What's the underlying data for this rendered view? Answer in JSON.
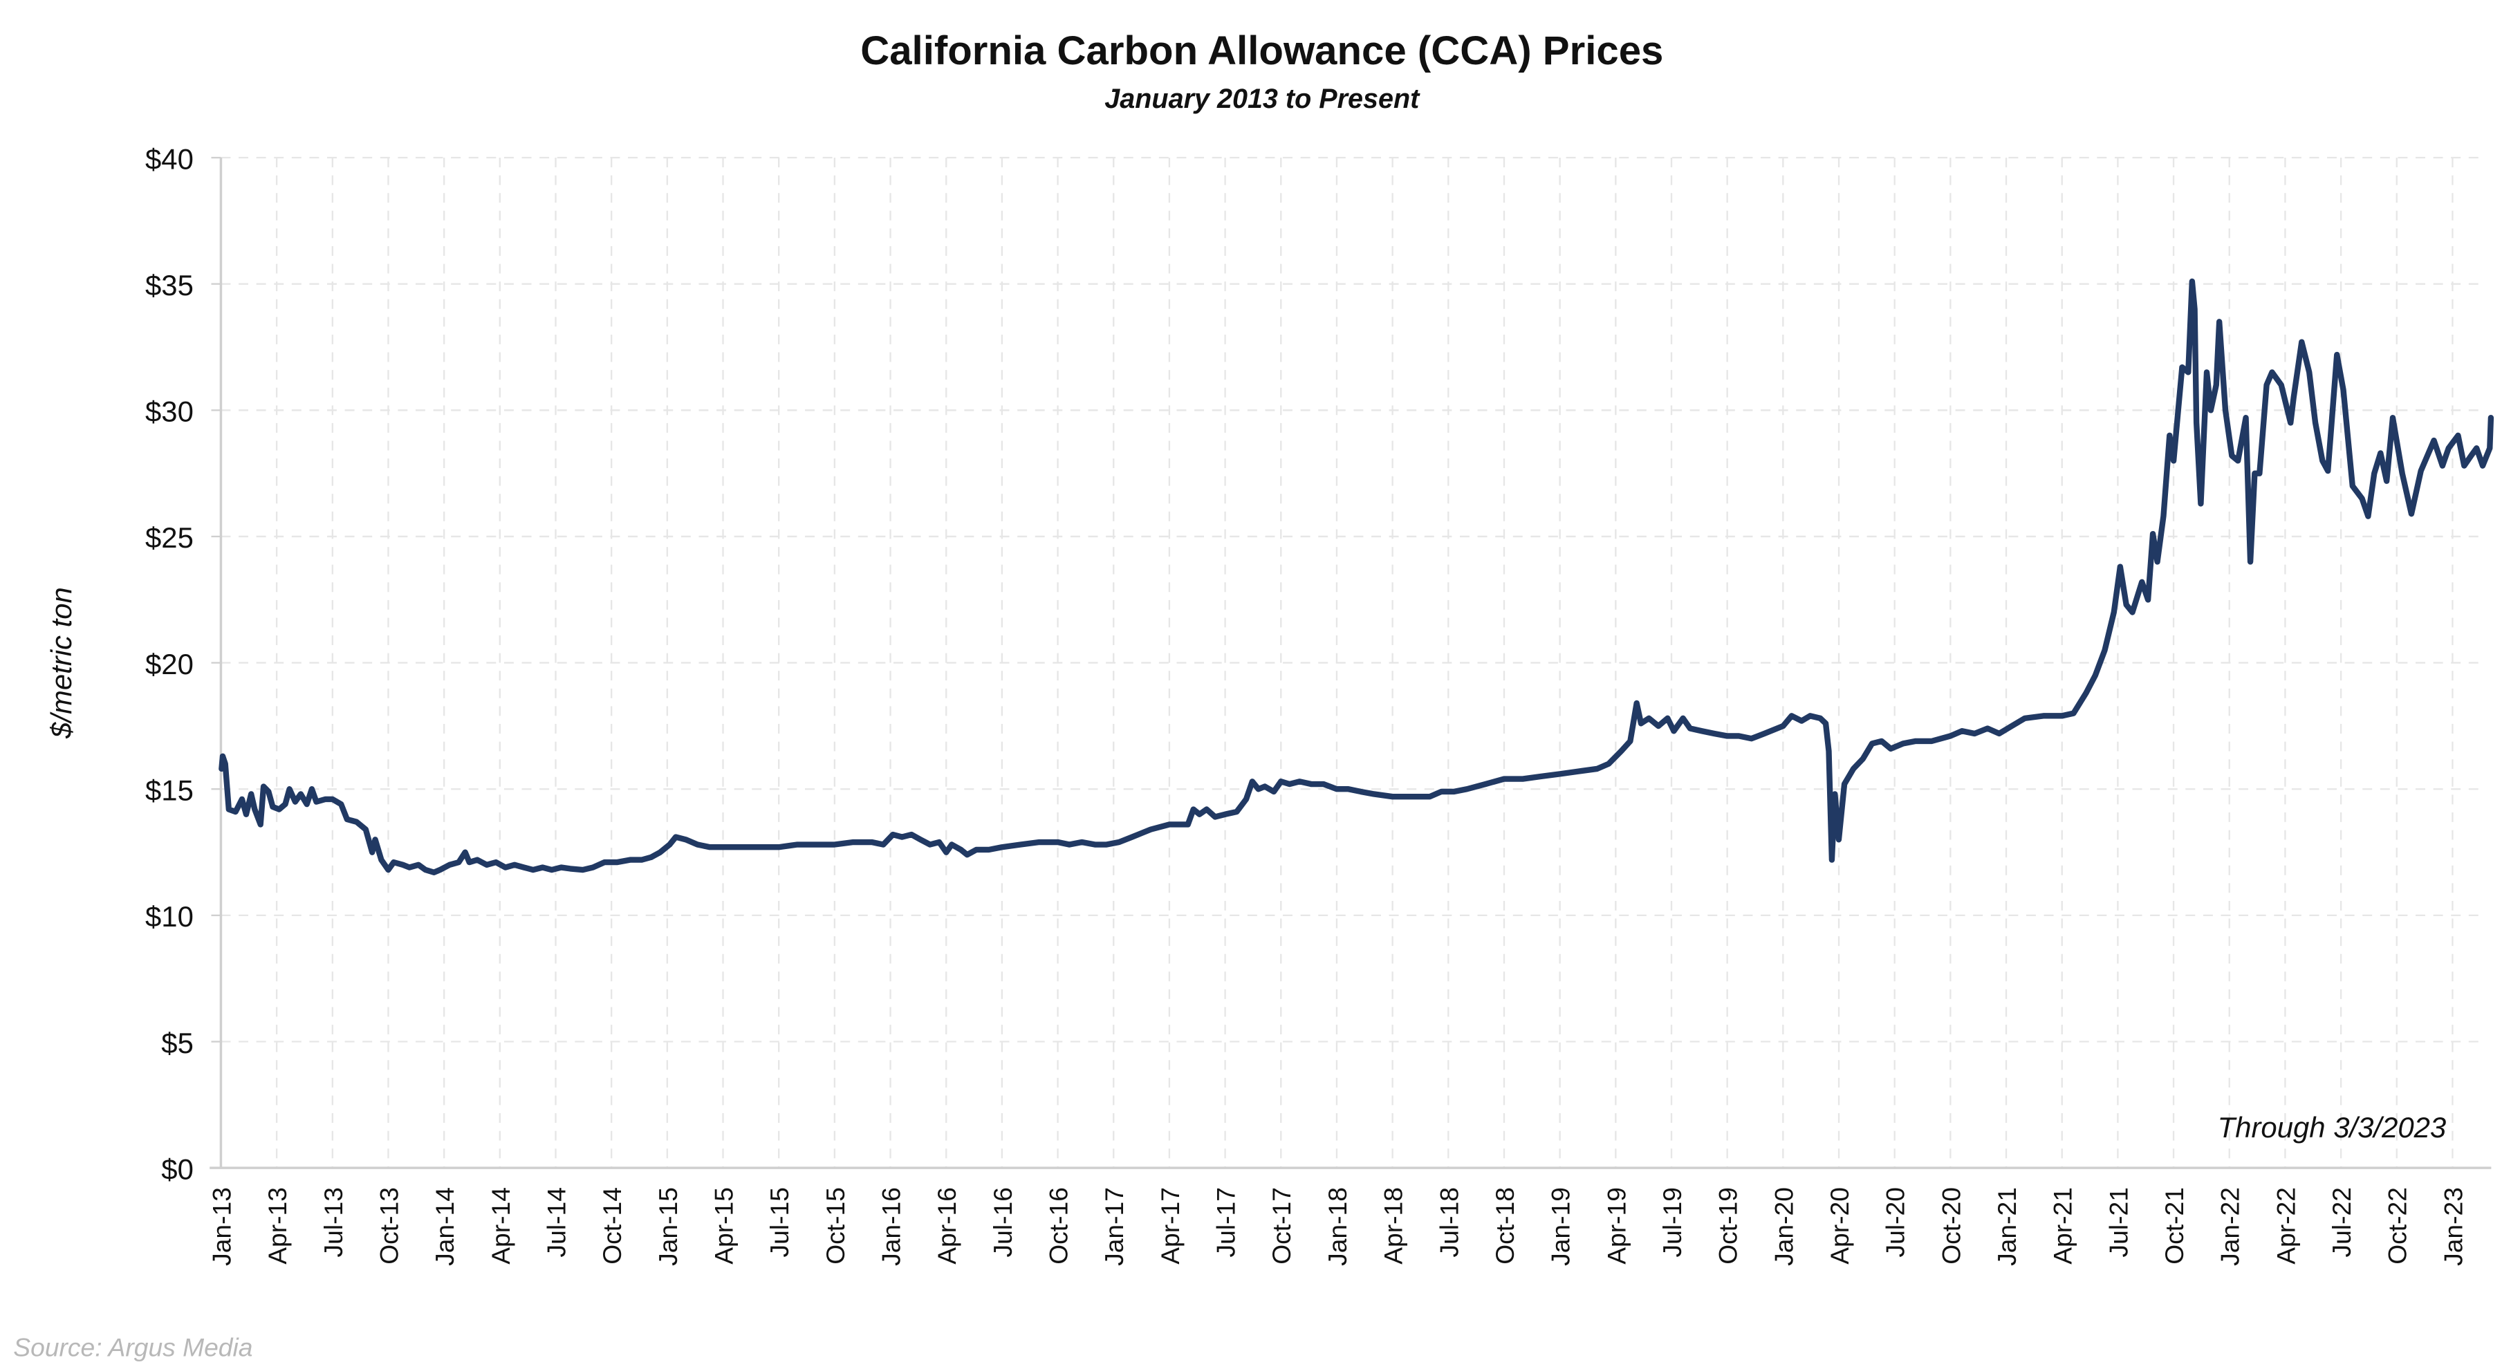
{
  "chart_data": {
    "type": "line",
    "title": "California Carbon Allowance (CCA) Prices",
    "subtitle": "January 2013 to Present",
    "ylabel": "$/metric ton",
    "xlabel": "",
    "ylim": [
      0,
      40
    ],
    "yticks": [
      0,
      5,
      10,
      15,
      20,
      25,
      30,
      35,
      40
    ],
    "ytick_labels": [
      "$0",
      "$5",
      "$10",
      "$15",
      "$20",
      "$25",
      "$30",
      "$35",
      "$40"
    ],
    "xticks": [
      "Jan-13",
      "Apr-13",
      "Jul-13",
      "Oct-13",
      "Jan-14",
      "Apr-14",
      "Jul-14",
      "Oct-14",
      "Jan-15",
      "Apr-15",
      "Jul-15",
      "Oct-15",
      "Jan-16",
      "Apr-16",
      "Jul-16",
      "Oct-16",
      "Jan-17",
      "Apr-17",
      "Jul-17",
      "Oct-17",
      "Jan-18",
      "Apr-18",
      "Jul-18",
      "Oct-18",
      "Jan-19",
      "Apr-19",
      "Jul-19",
      "Oct-19",
      "Jan-20",
      "Apr-20",
      "Jul-20",
      "Oct-20",
      "Jan-21",
      "Apr-21",
      "Jul-21",
      "Oct-21",
      "Jan-22",
      "Apr-22",
      "Jul-22",
      "Oct-22",
      "Jan-23"
    ],
    "grid": true,
    "line_color": "#213963",
    "annotation": "Through 3/3/2023",
    "source": "Source: Argus Media",
    "series": [
      {
        "points": [
          [
            "2013-01-02",
            15.8
          ],
          [
            "2013-01-04",
            16.3
          ],
          [
            "2013-01-08",
            16.0
          ],
          [
            "2013-01-14",
            14.2
          ],
          [
            "2013-01-25",
            14.1
          ],
          [
            "2013-02-05",
            14.6
          ],
          [
            "2013-02-12",
            14.0
          ],
          [
            "2013-02-20",
            14.8
          ],
          [
            "2013-02-26",
            14.2
          ],
          [
            "2013-03-05",
            13.6
          ],
          [
            "2013-03-10",
            15.1
          ],
          [
            "2013-03-18",
            14.9
          ],
          [
            "2013-03-25",
            14.3
          ],
          [
            "2013-04-05",
            14.2
          ],
          [
            "2013-04-15",
            14.4
          ],
          [
            "2013-04-22",
            15.0
          ],
          [
            "2013-05-01",
            14.5
          ],
          [
            "2013-05-10",
            14.8
          ],
          [
            "2013-05-20",
            14.4
          ],
          [
            "2013-05-28",
            15.0
          ],
          [
            "2013-06-05",
            14.5
          ],
          [
            "2013-06-20",
            14.6
          ],
          [
            "2013-07-01",
            14.6
          ],
          [
            "2013-07-15",
            14.4
          ],
          [
            "2013-07-25",
            13.8
          ],
          [
            "2013-08-10",
            13.7
          ],
          [
            "2013-08-25",
            13.4
          ],
          [
            "2013-09-05",
            12.5
          ],
          [
            "2013-09-10",
            13.0
          ],
          [
            "2013-09-20",
            12.2
          ],
          [
            "2013-10-01",
            11.8
          ],
          [
            "2013-10-10",
            12.1
          ],
          [
            "2013-10-25",
            12.0
          ],
          [
            "2013-11-05",
            11.9
          ],
          [
            "2013-11-20",
            12.0
          ],
          [
            "2013-12-01",
            11.8
          ],
          [
            "2013-12-15",
            11.7
          ],
          [
            "2013-12-25",
            11.8
          ],
          [
            "2014-01-10",
            12.0
          ],
          [
            "2014-01-25",
            12.1
          ],
          [
            "2014-02-05",
            12.5
          ],
          [
            "2014-02-12",
            12.1
          ],
          [
            "2014-02-25",
            12.2
          ],
          [
            "2014-03-10",
            12.0
          ],
          [
            "2014-03-25",
            12.1
          ],
          [
            "2014-04-10",
            11.9
          ],
          [
            "2014-04-25",
            12.0
          ],
          [
            "2014-05-10",
            11.9
          ],
          [
            "2014-05-25",
            11.8
          ],
          [
            "2014-06-10",
            11.9
          ],
          [
            "2014-06-25",
            11.8
          ],
          [
            "2014-07-10",
            11.9
          ],
          [
            "2014-07-25",
            11.85
          ],
          [
            "2014-08-15",
            11.8
          ],
          [
            "2014-09-01",
            11.9
          ],
          [
            "2014-09-20",
            12.1
          ],
          [
            "2014-10-10",
            12.1
          ],
          [
            "2014-11-01",
            12.2
          ],
          [
            "2014-11-20",
            12.2
          ],
          [
            "2014-12-05",
            12.3
          ],
          [
            "2014-12-20",
            12.5
          ],
          [
            "2015-01-05",
            12.8
          ],
          [
            "2015-01-15",
            13.1
          ],
          [
            "2015-02-01",
            13.0
          ],
          [
            "2015-02-20",
            12.8
          ],
          [
            "2015-03-10",
            12.7
          ],
          [
            "2015-04-01",
            12.7
          ],
          [
            "2015-05-01",
            12.7
          ],
          [
            "2015-06-01",
            12.7
          ],
          [
            "2015-07-01",
            12.7
          ],
          [
            "2015-08-01",
            12.8
          ],
          [
            "2015-09-01",
            12.8
          ],
          [
            "2015-10-01",
            12.8
          ],
          [
            "2015-11-01",
            12.9
          ],
          [
            "2015-12-01",
            12.9
          ],
          [
            "2015-12-20",
            12.8
          ],
          [
            "2016-01-05",
            13.2
          ],
          [
            "2016-01-20",
            13.1
          ],
          [
            "2016-02-05",
            13.2
          ],
          [
            "2016-02-20",
            13.0
          ],
          [
            "2016-03-05",
            12.8
          ],
          [
            "2016-03-20",
            12.9
          ],
          [
            "2016-04-01",
            12.5
          ],
          [
            "2016-04-10",
            12.8
          ],
          [
            "2016-04-25",
            12.6
          ],
          [
            "2016-05-05",
            12.4
          ],
          [
            "2016-05-20",
            12.6
          ],
          [
            "2016-06-10",
            12.6
          ],
          [
            "2016-07-01",
            12.7
          ],
          [
            "2016-08-01",
            12.8
          ],
          [
            "2016-09-01",
            12.9
          ],
          [
            "2016-10-01",
            12.9
          ],
          [
            "2016-10-20",
            12.8
          ],
          [
            "2016-11-10",
            12.9
          ],
          [
            "2016-12-01",
            12.8
          ],
          [
            "2016-12-20",
            12.8
          ],
          [
            "2017-01-10",
            12.9
          ],
          [
            "2017-02-01",
            13.1
          ],
          [
            "2017-03-01",
            13.4
          ],
          [
            "2017-04-01",
            13.6
          ],
          [
            "2017-05-01",
            13.6
          ],
          [
            "2017-05-10",
            14.2
          ],
          [
            "2017-05-20",
            14.0
          ],
          [
            "2017-06-01",
            14.2
          ],
          [
            "2017-06-15",
            13.9
          ],
          [
            "2017-07-01",
            14.0
          ],
          [
            "2017-07-20",
            14.1
          ],
          [
            "2017-08-05",
            14.6
          ],
          [
            "2017-08-15",
            15.3
          ],
          [
            "2017-08-25",
            15.0
          ],
          [
            "2017-09-05",
            15.1
          ],
          [
            "2017-09-20",
            14.9
          ],
          [
            "2017-10-01",
            15.3
          ],
          [
            "2017-10-15",
            15.2
          ],
          [
            "2017-11-01",
            15.3
          ],
          [
            "2017-11-20",
            15.2
          ],
          [
            "2017-12-10",
            15.2
          ],
          [
            "2018-01-01",
            15.0
          ],
          [
            "2018-01-20",
            15.0
          ],
          [
            "2018-02-10",
            14.9
          ],
          [
            "2018-03-01",
            14.8
          ],
          [
            "2018-04-01",
            14.7
          ],
          [
            "2018-05-01",
            14.7
          ],
          [
            "2018-06-01",
            14.7
          ],
          [
            "2018-06-20",
            14.9
          ],
          [
            "2018-07-10",
            14.9
          ],
          [
            "2018-08-01",
            15.0
          ],
          [
            "2018-09-01",
            15.2
          ],
          [
            "2018-10-01",
            15.4
          ],
          [
            "2018-11-01",
            15.4
          ],
          [
            "2018-12-01",
            15.5
          ],
          [
            "2019-01-01",
            15.6
          ],
          [
            "2019-02-01",
            15.7
          ],
          [
            "2019-03-01",
            15.8
          ],
          [
            "2019-03-20",
            16.0
          ],
          [
            "2019-04-10",
            16.5
          ],
          [
            "2019-04-25",
            16.9
          ],
          [
            "2019-05-05",
            18.4
          ],
          [
            "2019-05-12",
            17.6
          ],
          [
            "2019-05-25",
            17.8
          ],
          [
            "2019-06-10",
            17.5
          ],
          [
            "2019-06-25",
            17.8
          ],
          [
            "2019-07-05",
            17.3
          ],
          [
            "2019-07-20",
            17.8
          ],
          [
            "2019-08-01",
            17.4
          ],
          [
            "2019-08-20",
            17.3
          ],
          [
            "2019-09-10",
            17.2
          ],
          [
            "2019-10-01",
            17.1
          ],
          [
            "2019-10-20",
            17.1
          ],
          [
            "2019-11-10",
            17.0
          ],
          [
            "2019-12-01",
            17.2
          ],
          [
            "2020-01-01",
            17.5
          ],
          [
            "2020-01-15",
            17.9
          ],
          [
            "2020-02-01",
            17.7
          ],
          [
            "2020-02-15",
            17.9
          ],
          [
            "2020-03-01",
            17.8
          ],
          [
            "2020-03-10",
            17.6
          ],
          [
            "2020-03-15",
            16.5
          ],
          [
            "2020-03-20",
            12.2
          ],
          [
            "2020-03-25",
            14.8
          ],
          [
            "2020-04-01",
            13.0
          ],
          [
            "2020-04-10",
            15.2
          ],
          [
            "2020-04-25",
            15.8
          ],
          [
            "2020-05-10",
            16.2
          ],
          [
            "2020-05-25",
            16.8
          ],
          [
            "2020-06-10",
            16.9
          ],
          [
            "2020-06-25",
            16.6
          ],
          [
            "2020-07-15",
            16.8
          ],
          [
            "2020-08-05",
            16.9
          ],
          [
            "2020-09-01",
            16.9
          ],
          [
            "2020-10-01",
            17.1
          ],
          [
            "2020-10-20",
            17.3
          ],
          [
            "2020-11-10",
            17.2
          ],
          [
            "2020-12-01",
            17.4
          ],
          [
            "2020-12-20",
            17.2
          ],
          [
            "2021-01-10",
            17.5
          ],
          [
            "2021-02-01",
            17.8
          ],
          [
            "2021-03-01",
            17.9
          ],
          [
            "2021-04-01",
            17.9
          ],
          [
            "2021-04-20",
            18.0
          ],
          [
            "2021-05-10",
            18.8
          ],
          [
            "2021-05-25",
            19.5
          ],
          [
            "2021-06-10",
            20.5
          ],
          [
            "2021-06-25",
            22.0
          ],
          [
            "2021-07-05",
            23.8
          ],
          [
            "2021-07-15",
            22.3
          ],
          [
            "2021-07-25",
            22.0
          ],
          [
            "2021-08-10",
            23.2
          ],
          [
            "2021-08-20",
            22.5
          ],
          [
            "2021-08-28",
            25.1
          ],
          [
            "2021-09-05",
            24.0
          ],
          [
            "2021-09-15",
            25.8
          ],
          [
            "2021-09-25",
            29.0
          ],
          [
            "2021-10-01",
            28.0
          ],
          [
            "2021-10-15",
            31.7
          ],
          [
            "2021-10-25",
            31.5
          ],
          [
            "2021-11-01",
            35.1
          ],
          [
            "2021-11-05",
            34.0
          ],
          [
            "2021-11-08",
            29.5
          ],
          [
            "2021-11-15",
            26.3
          ],
          [
            "2021-11-25",
            31.5
          ],
          [
            "2021-12-01",
            30.0
          ],
          [
            "2021-12-10",
            31.0
          ],
          [
            "2021-12-15",
            33.5
          ],
          [
            "2021-12-25",
            30.0
          ],
          [
            "2022-01-05",
            28.2
          ],
          [
            "2022-01-15",
            28.0
          ],
          [
            "2022-01-28",
            29.7
          ],
          [
            "2022-02-05",
            24.0
          ],
          [
            "2022-02-12",
            27.5
          ],
          [
            "2022-02-20",
            27.5
          ],
          [
            "2022-03-01",
            31.0
          ],
          [
            "2022-03-10",
            31.5
          ],
          [
            "2022-03-25",
            31.0
          ],
          [
            "2022-04-10",
            29.5
          ],
          [
            "2022-04-15",
            30.5
          ],
          [
            "2022-04-28",
            32.7
          ],
          [
            "2022-05-10",
            31.5
          ],
          [
            "2022-05-20",
            29.5
          ],
          [
            "2022-06-01",
            28.0
          ],
          [
            "2022-06-10",
            27.6
          ],
          [
            "2022-06-25",
            32.2
          ],
          [
            "2022-07-05",
            30.8
          ],
          [
            "2022-07-20",
            27.0
          ],
          [
            "2022-08-05",
            26.5
          ],
          [
            "2022-08-15",
            25.8
          ],
          [
            "2022-08-25",
            27.5
          ],
          [
            "2022-09-05",
            28.3
          ],
          [
            "2022-09-15",
            27.2
          ],
          [
            "2022-09-25",
            29.7
          ],
          [
            "2022-10-10",
            27.5
          ],
          [
            "2022-10-25",
            25.9
          ],
          [
            "2022-11-10",
            27.6
          ],
          [
            "2022-12-01",
            28.8
          ],
          [
            "2022-12-15",
            27.8
          ],
          [
            "2022-12-25",
            28.5
          ],
          [
            "2023-01-10",
            29.0
          ],
          [
            "2023-01-20",
            27.8
          ],
          [
            "2023-02-01",
            28.2
          ],
          [
            "2023-02-10",
            28.5
          ],
          [
            "2023-02-20",
            27.8
          ],
          [
            "2023-03-01",
            28.5
          ],
          [
            "2023-03-03",
            29.7
          ]
        ]
      }
    ]
  }
}
